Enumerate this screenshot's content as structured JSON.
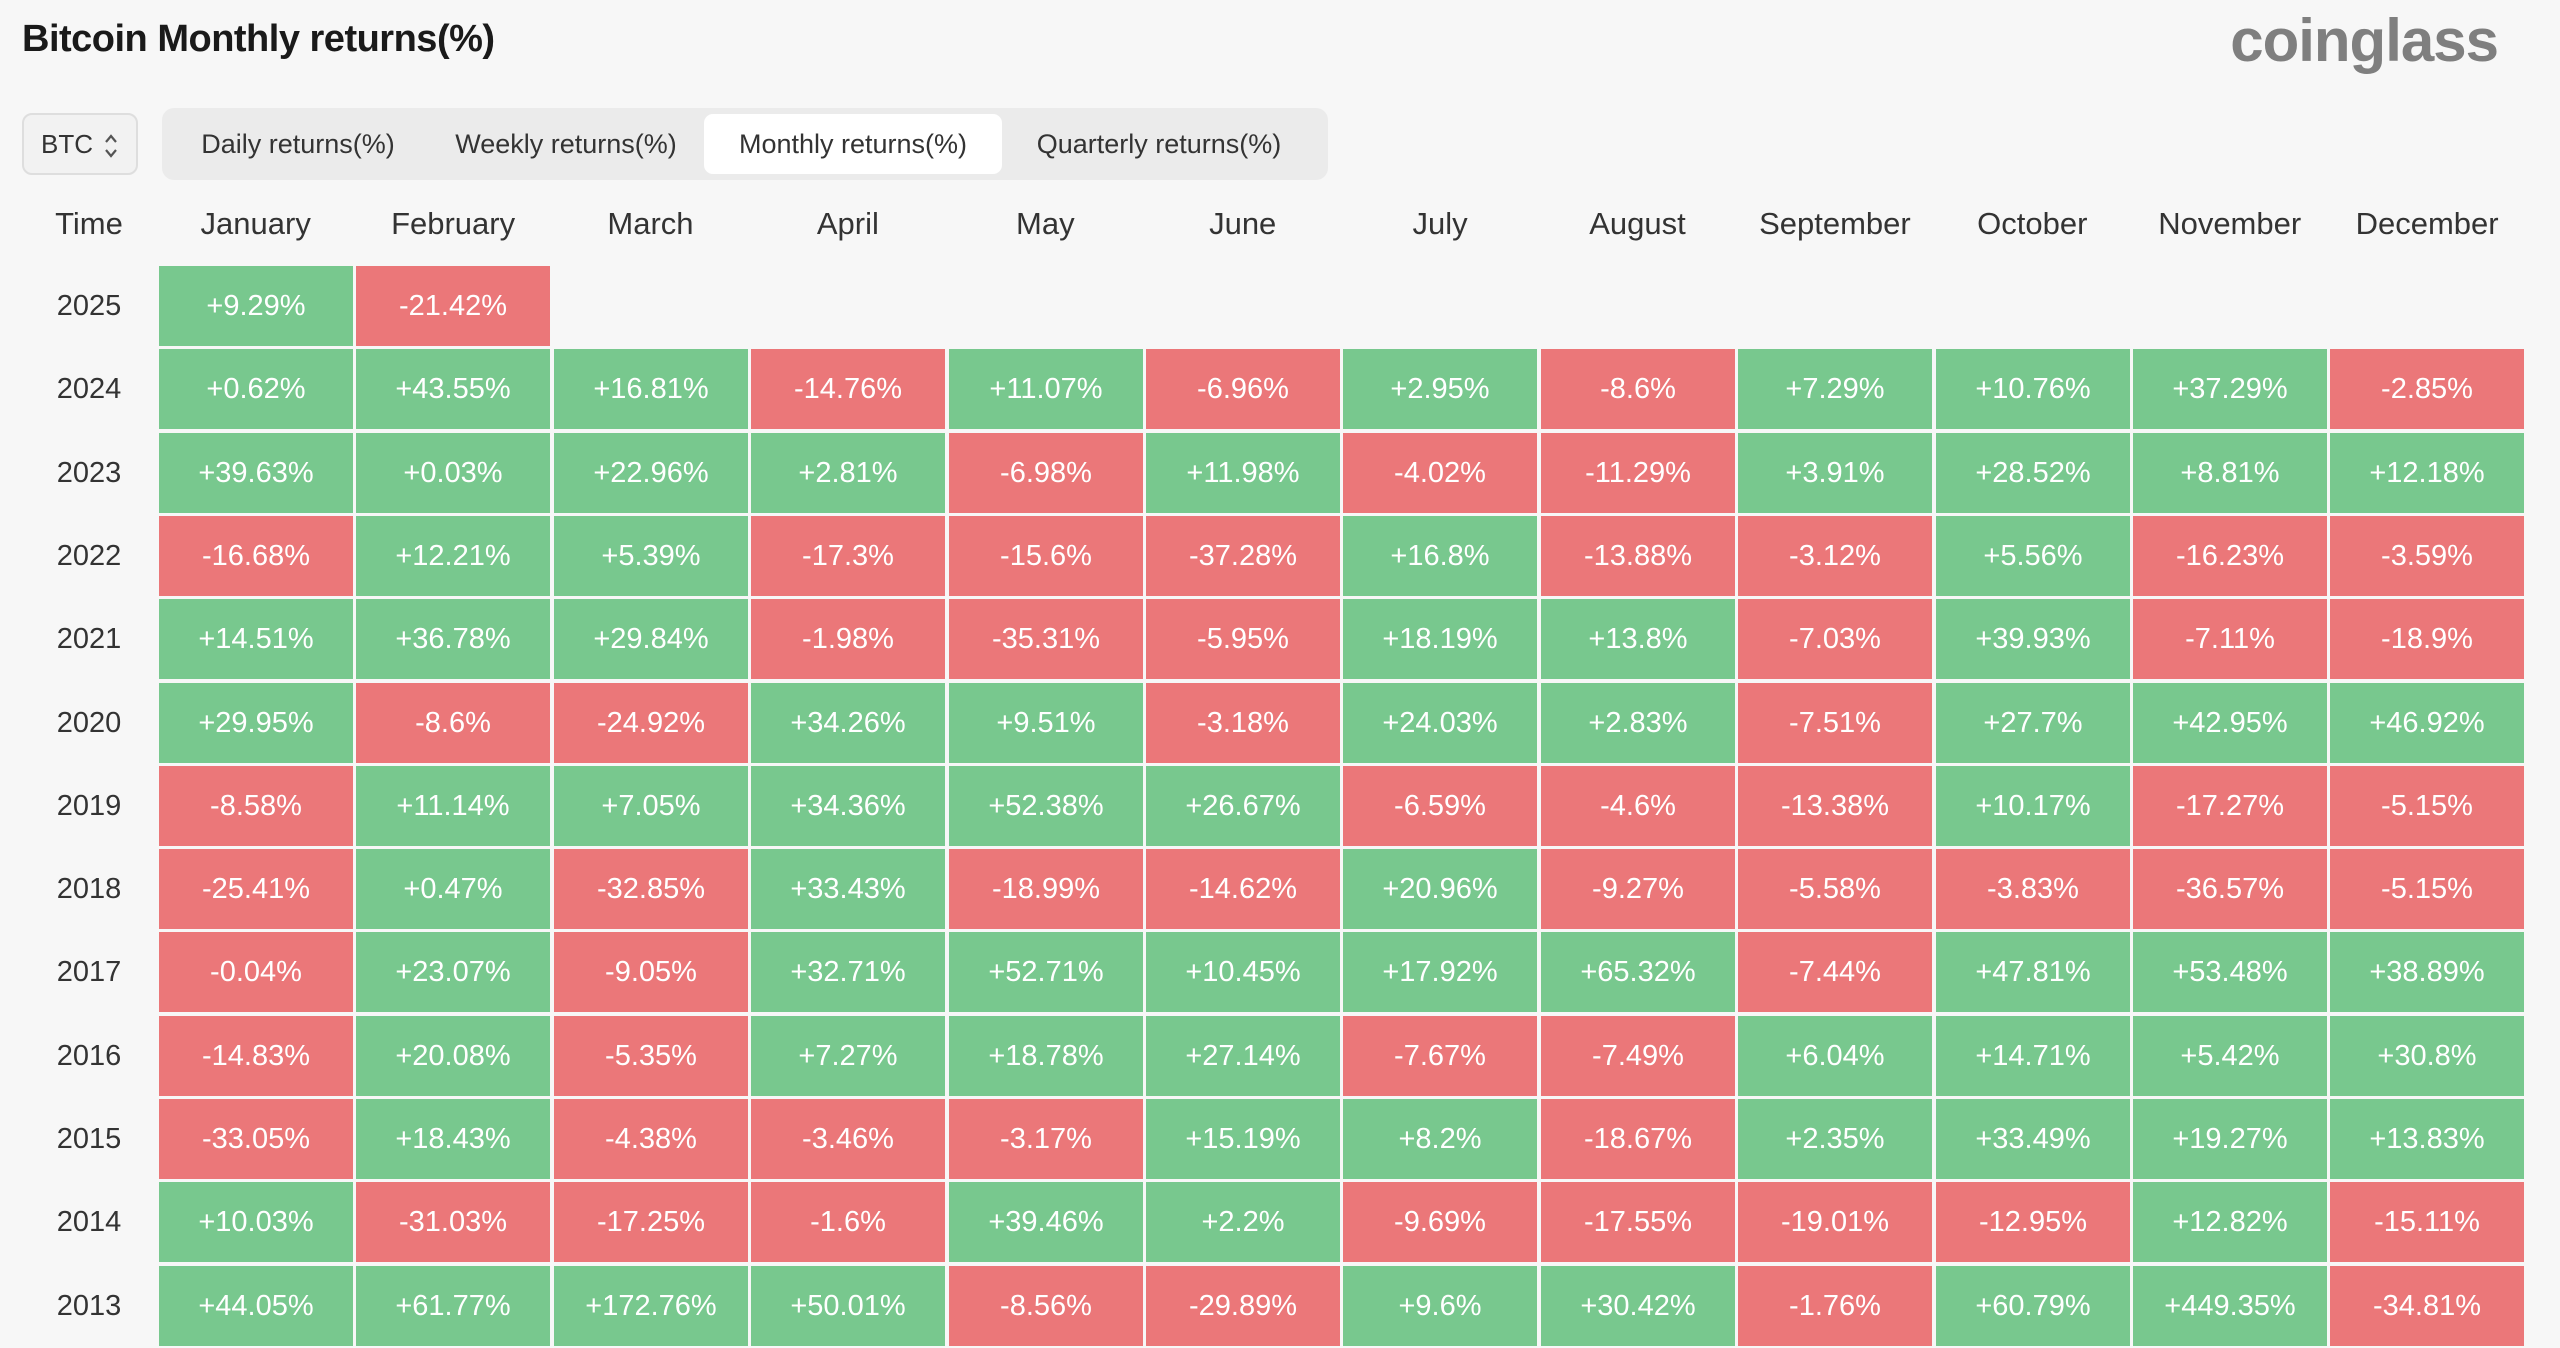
{
  "header": {
    "title": "Bitcoin Monthly returns(%)",
    "brand": "coinglass"
  },
  "coin_select": {
    "value": "BTC"
  },
  "tabs": [
    {
      "label": "Daily returns(%)",
      "active": false
    },
    {
      "label": "Weekly returns(%)",
      "active": false
    },
    {
      "label": "Monthly returns(%)",
      "active": true
    },
    {
      "label": "Quarterly returns(%)",
      "active": false
    }
  ],
  "colors": {
    "positive": "#78c88e",
    "negative": "#eb7779"
  },
  "table": {
    "time_label": "Time",
    "months": [
      "January",
      "February",
      "March",
      "April",
      "May",
      "June",
      "July",
      "August",
      "September",
      "October",
      "November",
      "December"
    ],
    "rows": [
      {
        "year": "2025",
        "values": [
          "+9.29%",
          "-21.42%"
        ]
      },
      {
        "year": "2024",
        "values": [
          "+0.62%",
          "+43.55%",
          "+16.81%",
          "-14.76%",
          "+11.07%",
          "-6.96%",
          "+2.95%",
          "-8.6%",
          "+7.29%",
          "+10.76%",
          "+37.29%",
          "-2.85%"
        ]
      },
      {
        "year": "2023",
        "values": [
          "+39.63%",
          "+0.03%",
          "+22.96%",
          "+2.81%",
          "-6.98%",
          "+11.98%",
          "-4.02%",
          "-11.29%",
          "+3.91%",
          "+28.52%",
          "+8.81%",
          "+12.18%"
        ]
      },
      {
        "year": "2022",
        "values": [
          "-16.68%",
          "+12.21%",
          "+5.39%",
          "-17.3%",
          "-15.6%",
          "-37.28%",
          "+16.8%",
          "-13.88%",
          "-3.12%",
          "+5.56%",
          "-16.23%",
          "-3.59%"
        ]
      },
      {
        "year": "2021",
        "values": [
          "+14.51%",
          "+36.78%",
          "+29.84%",
          "-1.98%",
          "-35.31%",
          "-5.95%",
          "+18.19%",
          "+13.8%",
          "-7.03%",
          "+39.93%",
          "-7.11%",
          "-18.9%"
        ]
      },
      {
        "year": "2020",
        "values": [
          "+29.95%",
          "-8.6%",
          "-24.92%",
          "+34.26%",
          "+9.51%",
          "-3.18%",
          "+24.03%",
          "+2.83%",
          "-7.51%",
          "+27.7%",
          "+42.95%",
          "+46.92%"
        ]
      },
      {
        "year": "2019",
        "values": [
          "-8.58%",
          "+11.14%",
          "+7.05%",
          "+34.36%",
          "+52.38%",
          "+26.67%",
          "-6.59%",
          "-4.6%",
          "-13.38%",
          "+10.17%",
          "-17.27%",
          "-5.15%"
        ]
      },
      {
        "year": "2018",
        "values": [
          "-25.41%",
          "+0.47%",
          "-32.85%",
          "+33.43%",
          "-18.99%",
          "-14.62%",
          "+20.96%",
          "-9.27%",
          "-5.58%",
          "-3.83%",
          "-36.57%",
          "-5.15%"
        ]
      },
      {
        "year": "2017",
        "values": [
          "-0.04%",
          "+23.07%",
          "-9.05%",
          "+32.71%",
          "+52.71%",
          "+10.45%",
          "+17.92%",
          "+65.32%",
          "-7.44%",
          "+47.81%",
          "+53.48%",
          "+38.89%"
        ]
      },
      {
        "year": "2016",
        "values": [
          "-14.83%",
          "+20.08%",
          "-5.35%",
          "+7.27%",
          "+18.78%",
          "+27.14%",
          "-7.67%",
          "-7.49%",
          "+6.04%",
          "+14.71%",
          "+5.42%",
          "+30.8%"
        ]
      },
      {
        "year": "2015",
        "values": [
          "-33.05%",
          "+18.43%",
          "-4.38%",
          "-3.46%",
          "-3.17%",
          "+15.19%",
          "+8.2%",
          "-18.67%",
          "+2.35%",
          "+33.49%",
          "+19.27%",
          "+13.83%"
        ]
      },
      {
        "year": "2014",
        "values": [
          "+10.03%",
          "-31.03%",
          "-17.25%",
          "-1.6%",
          "+39.46%",
          "+2.2%",
          "-9.69%",
          "-17.55%",
          "-19.01%",
          "-12.95%",
          "+12.82%",
          "-15.11%"
        ]
      },
      {
        "year": "2013",
        "values": [
          "+44.05%",
          "+61.77%",
          "+172.76%",
          "+50.01%",
          "-8.56%",
          "-29.89%",
          "+9.6%",
          "+30.42%",
          "-1.76%",
          "+60.79%",
          "+449.35%",
          "-34.81%"
        ]
      }
    ]
  }
}
